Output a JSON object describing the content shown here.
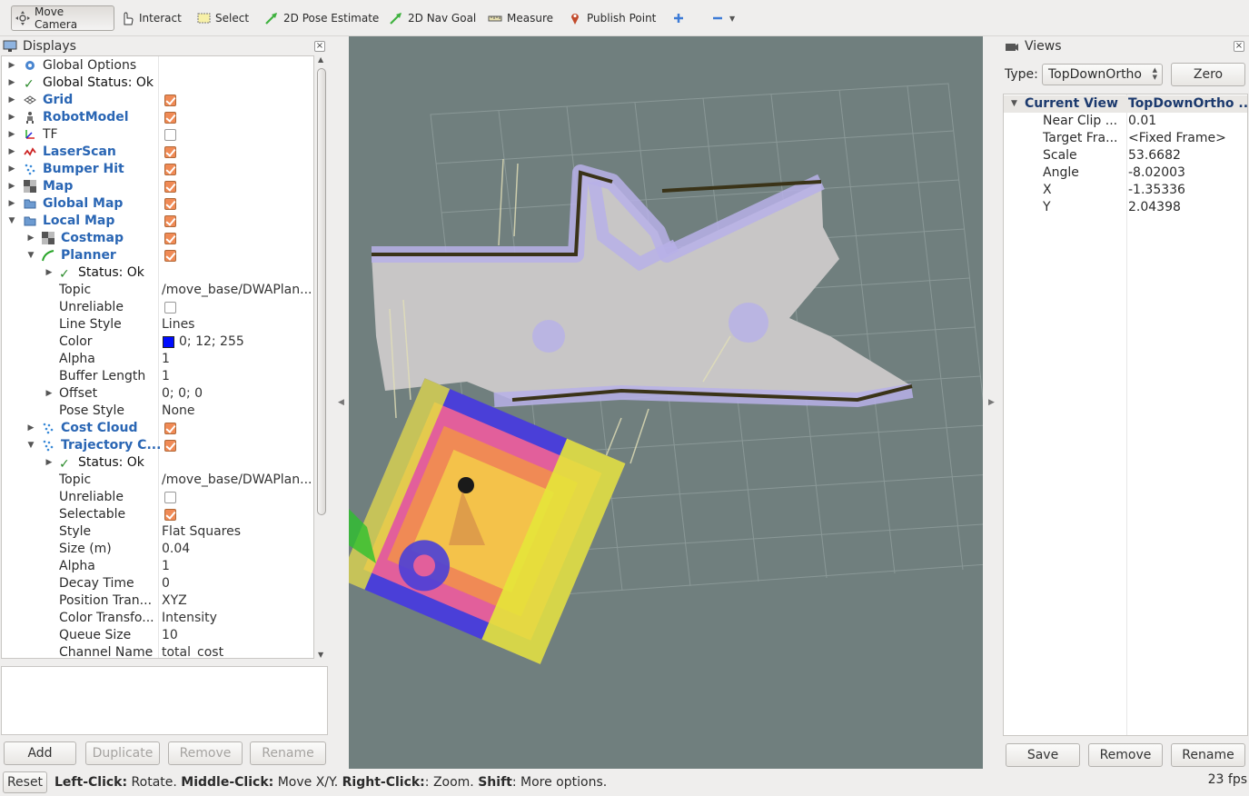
{
  "toolbar": {
    "tools": [
      {
        "label": "Move Camera",
        "icon": "move-camera-icon"
      },
      {
        "label": "Interact",
        "icon": "hand-cursor-icon"
      },
      {
        "label": "Select",
        "icon": "select-rectangle-icon"
      },
      {
        "label": "2D Pose Estimate",
        "icon": "green-arrow-icon"
      },
      {
        "label": "2D Nav Goal",
        "icon": "green-arrow-icon"
      },
      {
        "label": "Measure",
        "icon": "ruler-icon"
      },
      {
        "label": "Publish Point",
        "icon": "map-pin-icon"
      }
    ],
    "add_icon": "plus-icon",
    "remove_icon": "minus-icon"
  },
  "displays": {
    "title": "Displays",
    "rows": [
      {
        "label": "Global Options",
        "value": ""
      },
      {
        "label": "Global Status: Ok",
        "value": ""
      },
      {
        "label": "Grid",
        "checked": true
      },
      {
        "label": "RobotModel",
        "checked": true
      },
      {
        "label": "TF",
        "checked": false
      },
      {
        "label": "LaserScan",
        "checked": true
      },
      {
        "label": "Bumper Hit",
        "checked": true
      },
      {
        "label": "Map",
        "checked": true
      },
      {
        "label": "Global Map",
        "checked": true
      },
      {
        "label": "Local Map",
        "checked": true
      },
      {
        "label": "Costmap",
        "checked": true
      },
      {
        "label": "Planner",
        "checked": true
      },
      {
        "label": "Status: Ok",
        "value": ""
      },
      {
        "label": "Topic",
        "value": "/move_base/DWAPlan..."
      },
      {
        "label": "Unreliable",
        "checked": false
      },
      {
        "label": "Line Style",
        "value": "Lines"
      },
      {
        "label": "Color",
        "value": "0; 12; 255"
      },
      {
        "label": "Alpha",
        "value": "1"
      },
      {
        "label": "Buffer Length",
        "value": "1"
      },
      {
        "label": "Offset",
        "value": "0; 0; 0"
      },
      {
        "label": "Pose Style",
        "value": "None"
      },
      {
        "label": "Cost Cloud",
        "checked": true
      },
      {
        "label": "Trajectory C...",
        "checked": true
      },
      {
        "label": "Status: Ok",
        "value": ""
      },
      {
        "label": "Topic",
        "value": "/move_base/DWAPlan..."
      },
      {
        "label": "Unreliable",
        "checked": false
      },
      {
        "label": "Selectable",
        "checked": true
      },
      {
        "label": "Style",
        "value": "Flat Squares"
      },
      {
        "label": "Size (m)",
        "value": "0.04"
      },
      {
        "label": "Alpha",
        "value": "1"
      },
      {
        "label": "Decay Time",
        "value": "0"
      },
      {
        "label": "Position Tran...",
        "value": "XYZ"
      },
      {
        "label": "Color Transfo...",
        "value": "Intensity"
      },
      {
        "label": "Queue Size",
        "value": "10"
      },
      {
        "label": "Channel Name",
        "value": "total_cost"
      }
    ],
    "planner_color": "#0000ff",
    "buttons": {
      "add": "Add",
      "duplicate": "Duplicate",
      "remove": "Remove",
      "rename": "Rename"
    }
  },
  "views": {
    "title": "Views",
    "type_label": "Type:",
    "type_value": "TopDownOrtho",
    "zero": "Zero",
    "header": {
      "name": "Current View",
      "value": "TopDownOrtho ..."
    },
    "props": [
      {
        "name": "Near Clip ...",
        "value": "0.01"
      },
      {
        "name": "Target Fra...",
        "value": "<Fixed Frame>"
      },
      {
        "name": "Scale",
        "value": "53.6682"
      },
      {
        "name": "Angle",
        "value": "-8.02003"
      },
      {
        "name": "X",
        "value": "-1.35336"
      },
      {
        "name": "Y",
        "value": "2.04398"
      }
    ],
    "buttons": {
      "save": "Save",
      "remove": "Remove",
      "rename": "Rename"
    }
  },
  "statusbar": {
    "reset": "Reset",
    "hint_left_key": "Left-Click:",
    "hint_left_val": " Rotate. ",
    "hint_mid_key": "Middle-Click:",
    "hint_mid_val": " Move X/Y. ",
    "hint_right_key": "Right-Click:",
    "hint_right_val": ": Zoom. ",
    "hint_shift_key": "Shift",
    "hint_shift_val": ": More options.",
    "fps": "23 fps"
  },
  "colors": {
    "viewport_bg": "#707f7e",
    "accent_blue": "#2a66b4",
    "checkbox": "#f08a55"
  }
}
